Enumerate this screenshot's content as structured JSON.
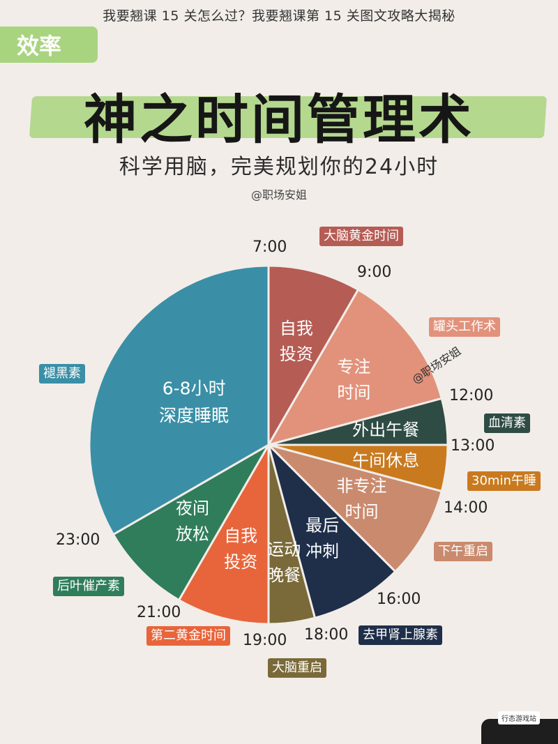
{
  "page": {
    "title": "我要翘课 15 关怎么过？我要翘课第 15 关图文攻略大揭秘",
    "badge": "效率",
    "main_title": "神之时间管理术",
    "subtitle": "科学用脑，完美规划你的24小时",
    "credit": "@职场安姐",
    "watermark": "@职场安姐",
    "corner_mark": "行态游戏站"
  },
  "chart_data": {
    "type": "pie",
    "title": "神之时间管理术",
    "unit": "hours",
    "slices": [
      {
        "label": "自我\n投资",
        "start": "7:00",
        "end": "9:00",
        "hours": 2,
        "color": "#b55c55"
      },
      {
        "label": "专注\n时间",
        "start": "9:00",
        "end": "12:00",
        "hours": 3,
        "color": "#e2917a"
      },
      {
        "label": "外出午餐",
        "start": "12:00",
        "end": "13:00",
        "hours": 1,
        "color": "#2e4b44"
      },
      {
        "label": "午间休息",
        "start": "13:00",
        "end": "14:00",
        "hours": 1,
        "color": "#c97a1f"
      },
      {
        "label": "非专注\n时间",
        "start": "14:00",
        "end": "16:00",
        "hours": 2,
        "color": "#c98a6e"
      },
      {
        "label": "最后\n冲刺",
        "start": "16:00",
        "end": "18:00",
        "hours": 2,
        "color": "#1f2f4a"
      },
      {
        "label": "运动\n晚餐",
        "start": "18:00",
        "end": "19:00",
        "hours": 1,
        "color": "#7a6a3a"
      },
      {
        "label": "自我\n投资",
        "start": "19:00",
        "end": "21:00",
        "hours": 2,
        "color": "#e8643a"
      },
      {
        "label": "夜间\n放松",
        "start": "21:00",
        "end": "23:00",
        "hours": 2,
        "color": "#2f7d5a"
      },
      {
        "label": "6-8小时\n深度睡眠",
        "start": "23:00",
        "end": "7:00",
        "hours": 8,
        "color": "#3a8fa6"
      }
    ],
    "time_labels": [
      "7:00",
      "9:00",
      "12:00",
      "13:00",
      "14:00",
      "16:00",
      "18:00",
      "19:00",
      "21:00",
      "23:00"
    ],
    "annotations": [
      {
        "text": "大脑黄金时间",
        "color": "#b55c55"
      },
      {
        "text": "罐头工作术",
        "color": "#e2917a"
      },
      {
        "text": "血清素",
        "color": "#2e4b44"
      },
      {
        "text": "30min午睡",
        "color": "#c97a1f"
      },
      {
        "text": "下午重启",
        "color": "#c98a6e"
      },
      {
        "text": "去甲肾上腺素",
        "color": "#1f2f4a"
      },
      {
        "text": "大脑重启",
        "color": "#7a6a3a"
      },
      {
        "text": "第二黄金时间",
        "color": "#e8643a"
      },
      {
        "text": "后叶催产素",
        "color": "#2f7d5a"
      },
      {
        "text": "褪黑素",
        "color": "#3a8fa6"
      }
    ]
  }
}
